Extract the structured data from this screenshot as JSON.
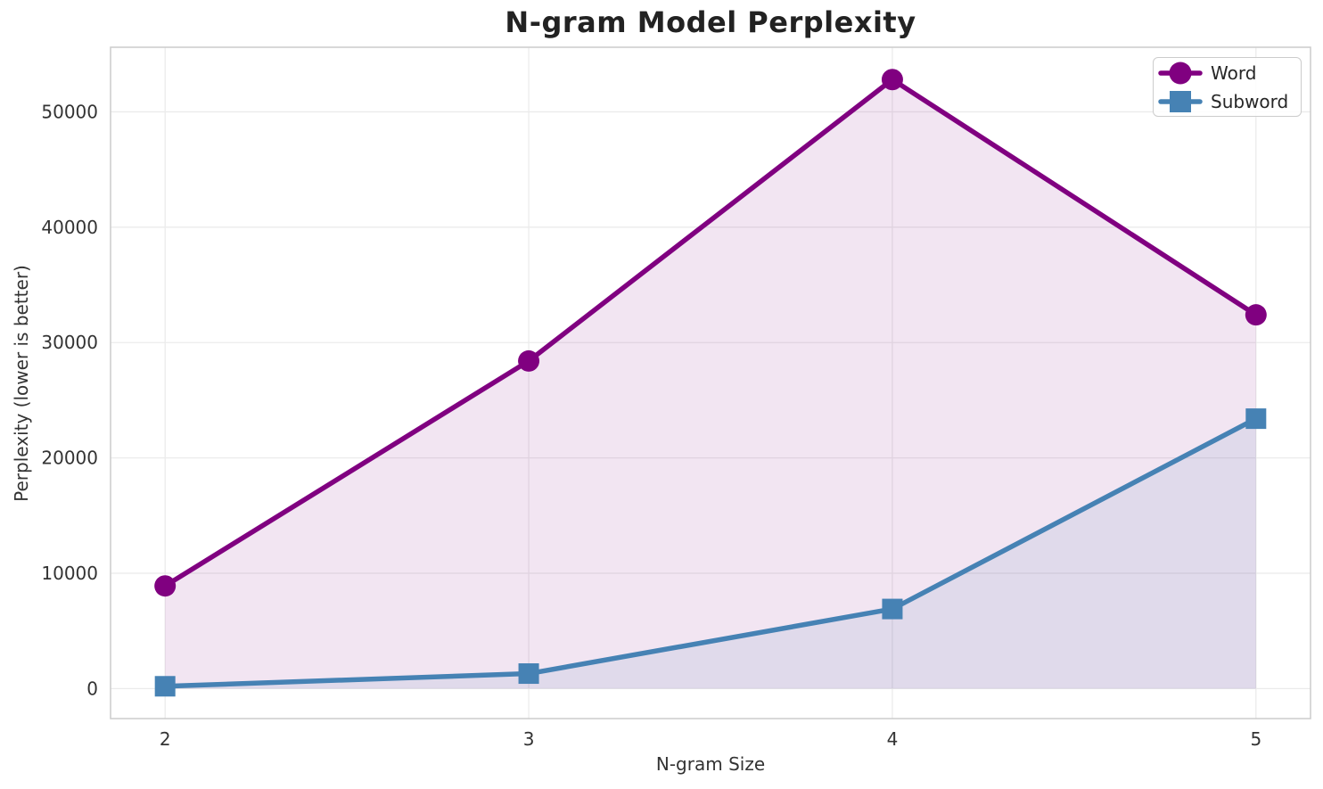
{
  "figure": {
    "background": "#ffffff"
  },
  "chart_data": {
    "type": "line",
    "title": "N-gram Model Perplexity",
    "xlabel": "N-gram Size",
    "ylabel": "Perplexity (lower is better)",
    "x": [
      2,
      3,
      4,
      5
    ],
    "series": [
      {
        "name": "Word",
        "values": [
          8900,
          28400,
          52800,
          32400
        ],
        "color": "#800080",
        "marker": "circle",
        "fill_to_zero": true,
        "fill_opacity": 0.1,
        "line_width": 5.5
      },
      {
        "name": "Subword",
        "values": [
          200,
          1300,
          6900,
          23400
        ],
        "color": "#4682B4",
        "marker": "square",
        "fill_to_zero": true,
        "fill_opacity": 0.1,
        "line_width": 5.5
      }
    ],
    "xticks": {
      "values": [
        2,
        3,
        4,
        5
      ],
      "labels": [
        "2",
        "3",
        "4",
        "5"
      ]
    },
    "yticks": {
      "values": [
        0,
        10000,
        20000,
        30000,
        40000,
        50000
      ],
      "labels": [
        "0",
        "10000",
        "20000",
        "30000",
        "40000",
        "50000"
      ]
    },
    "xlim": [
      1.85,
      5.15
    ],
    "ylim": [
      -2600,
      55600
    ],
    "grid": true,
    "legend_position": "top-right"
  },
  "colors": {
    "grid": "#ebebeb",
    "spine": "#cccccc",
    "title_text": "#222222",
    "tick_text": "#333333",
    "legend_border": "#cccccc"
  }
}
